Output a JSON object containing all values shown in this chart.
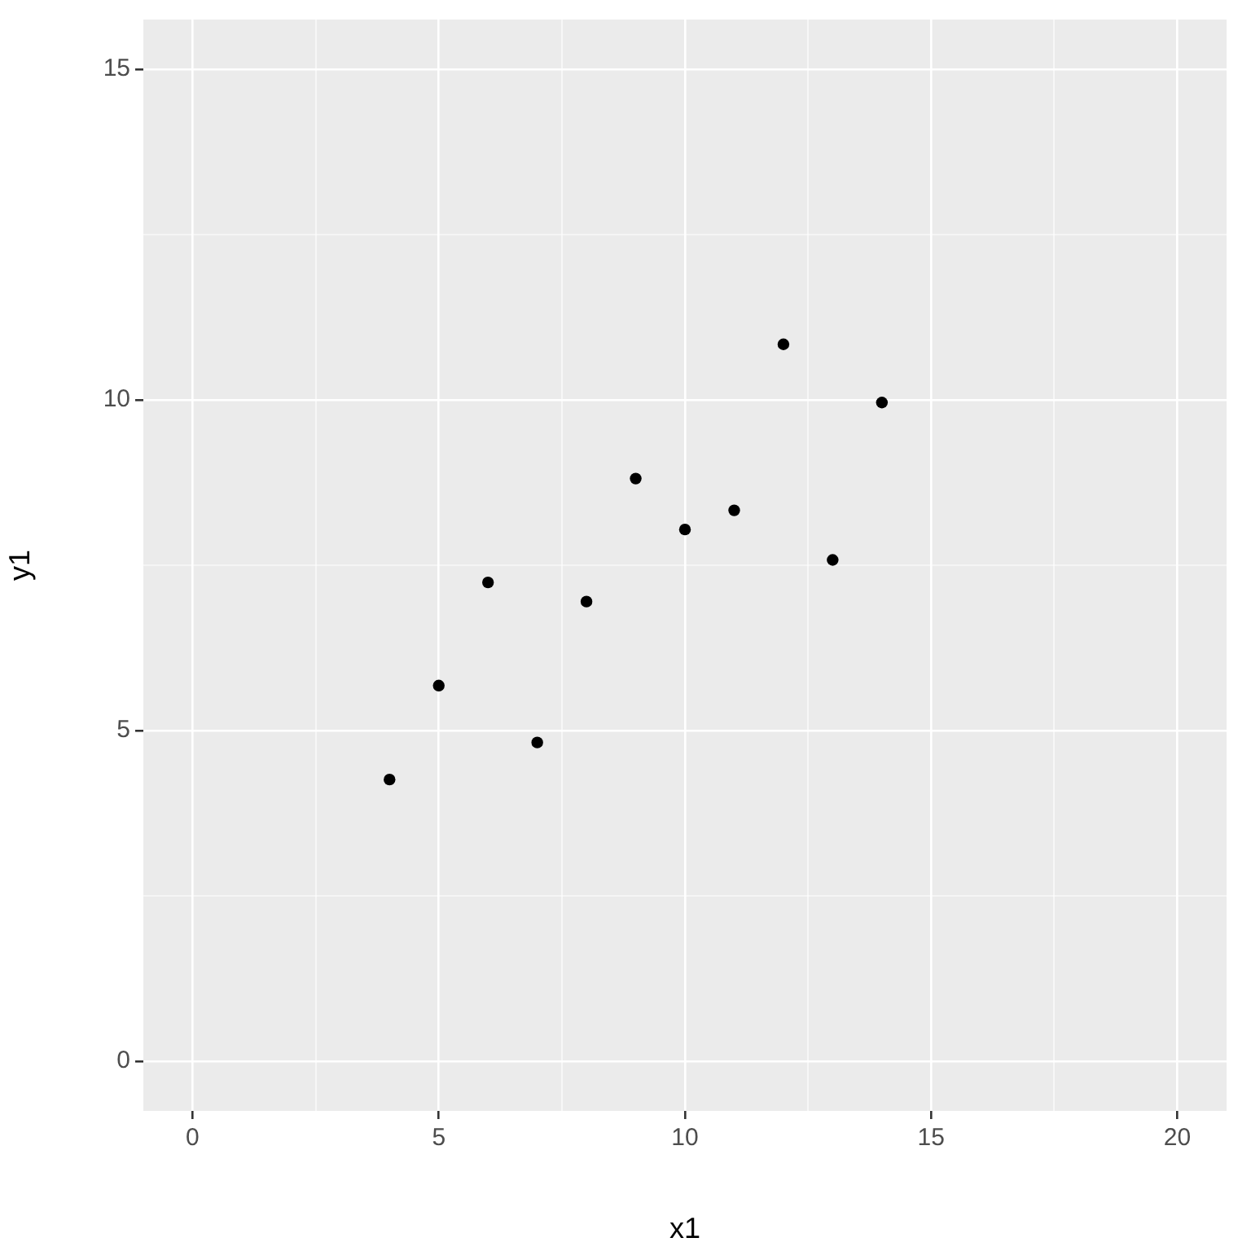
{
  "chart_data": {
    "type": "scatter",
    "xlabel": "x1",
    "ylabel": "y1",
    "x": [
      10,
      8,
      13,
      9,
      11,
      14,
      6,
      4,
      12,
      7,
      5
    ],
    "values": [
      8.04,
      6.95,
      7.58,
      8.81,
      8.33,
      9.96,
      7.24,
      4.26,
      10.84,
      4.82,
      5.68
    ],
    "color": "#000000",
    "marker": "circle",
    "xlim": [
      -1,
      21
    ],
    "xticks": [
      0,
      {
        "value": 2.5,
        "label": null
      },
      5,
      {
        "value": 7.5,
        "label": null
      },
      10,
      {
        "value": 12.5,
        "label": null
      },
      15,
      {
        "value": 17.5,
        "label": null
      },
      20
    ],
    "ylim": [
      -0.75,
      15.75
    ],
    "yticks": [
      0,
      {
        "value": 2.5,
        "label": null
      },
      5,
      {
        "value": 7.5,
        "label": null
      },
      10,
      {
        "value": 12.5,
        "label": null
      },
      15
    ],
    "grid": true
  }
}
